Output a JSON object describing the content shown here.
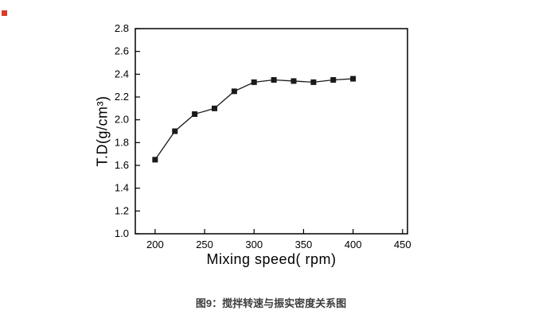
{
  "caption": "图9：搅拌转速与振实密度关系图",
  "colors": {
    "axis": "#000000",
    "line": "#1a1a1a",
    "marker": "#1a1a1a",
    "background": "#ffffff",
    "caption_text": "#3d3d3d",
    "anchor_square": "#d93a2b"
  },
  "chart_data": {
    "type": "line",
    "title": "",
    "xlabel": "Mixing speed( rpm)",
    "ylabel": "T.D(g/cm³)",
    "x": [
      200,
      220,
      240,
      260,
      280,
      300,
      320,
      340,
      360,
      380,
      400
    ],
    "y": [
      1.65,
      1.9,
      2.05,
      2.1,
      2.25,
      2.33,
      2.35,
      2.34,
      2.33,
      2.35,
      2.36
    ],
    "xlim": [
      180,
      455
    ],
    "ylim": [
      1.0,
      2.8
    ],
    "xticks": [
      200,
      250,
      300,
      350,
      400,
      450
    ],
    "yticks": [
      1.0,
      1.2,
      1.4,
      1.6,
      1.8,
      2.0,
      2.2,
      2.4,
      2.6,
      2.8
    ],
    "marker": "square",
    "grid": false,
    "legend": "none"
  }
}
